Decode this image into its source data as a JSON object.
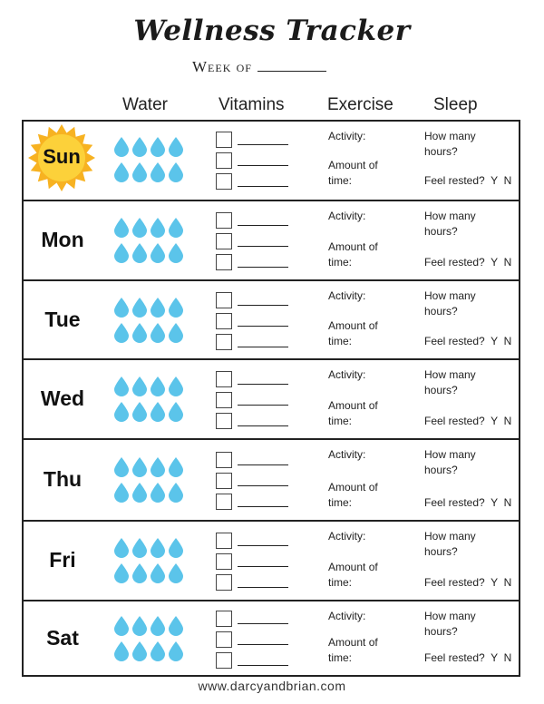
{
  "title": "Wellness Tracker",
  "week_label": "Week of",
  "columns": {
    "water": "Water",
    "vitamins": "Vitamins",
    "exercise": "Exercise",
    "sleep": "Sleep"
  },
  "exercise": {
    "activity": "Activity:",
    "amount_line1": "Amount of",
    "amount_line2": "time:"
  },
  "sleep": {
    "hours_line1": "How many",
    "hours_line2": "hours?",
    "rested": "Feel rested?  Y  N"
  },
  "days": [
    "Sun",
    "Mon",
    "Tue",
    "Wed",
    "Thu",
    "Fri",
    "Sat"
  ],
  "water_drops_per_day": 8,
  "vitamin_boxes_per_day": 3,
  "colors": {
    "drop": "#5bc4ea",
    "sun": "#f7b221",
    "sun_core": "#fcd13a",
    "border": "#222222"
  },
  "footer": "www.darcyandbrian.com"
}
